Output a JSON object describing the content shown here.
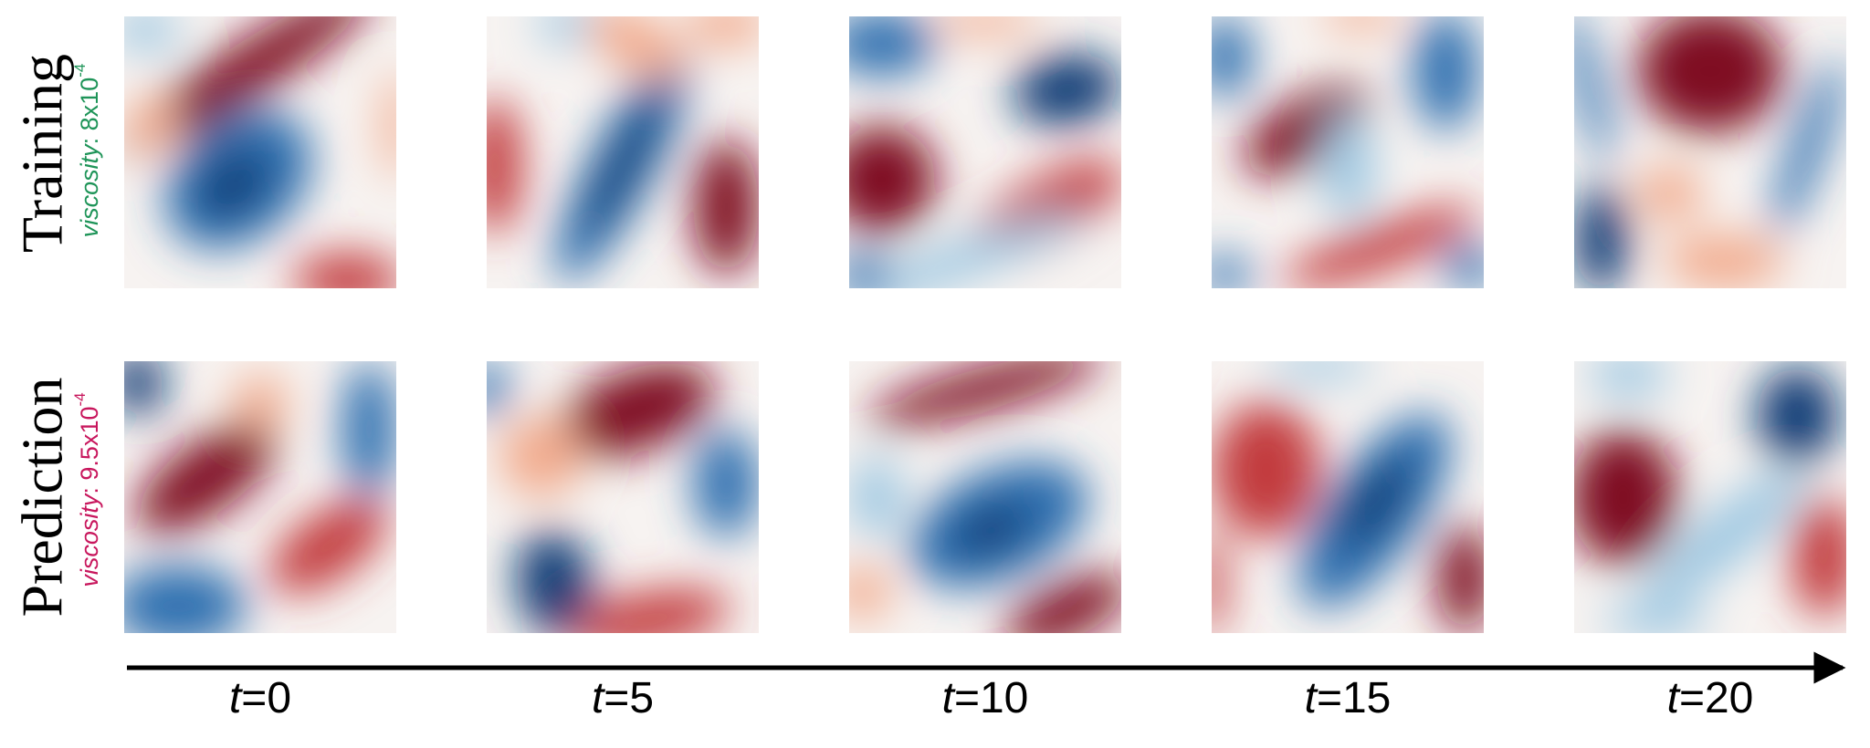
{
  "rows": [
    {
      "label": "Training",
      "param_name": "viscosity",
      "param_value": ": 8x10",
      "param_exponent": "-4"
    },
    {
      "label": "Prediction",
      "param_name": "viscosity",
      "param_value": ": 9.5x10",
      "param_exponent": "-4"
    }
  ],
  "time_labels": [
    {
      "symbol": "t",
      "text": "=0"
    },
    {
      "symbol": "t",
      "text": "=5"
    },
    {
      "symbol": "t",
      "text": "=10"
    },
    {
      "symbol": "t",
      "text": "=15"
    },
    {
      "symbol": "t",
      "text": "=20"
    }
  ]
}
